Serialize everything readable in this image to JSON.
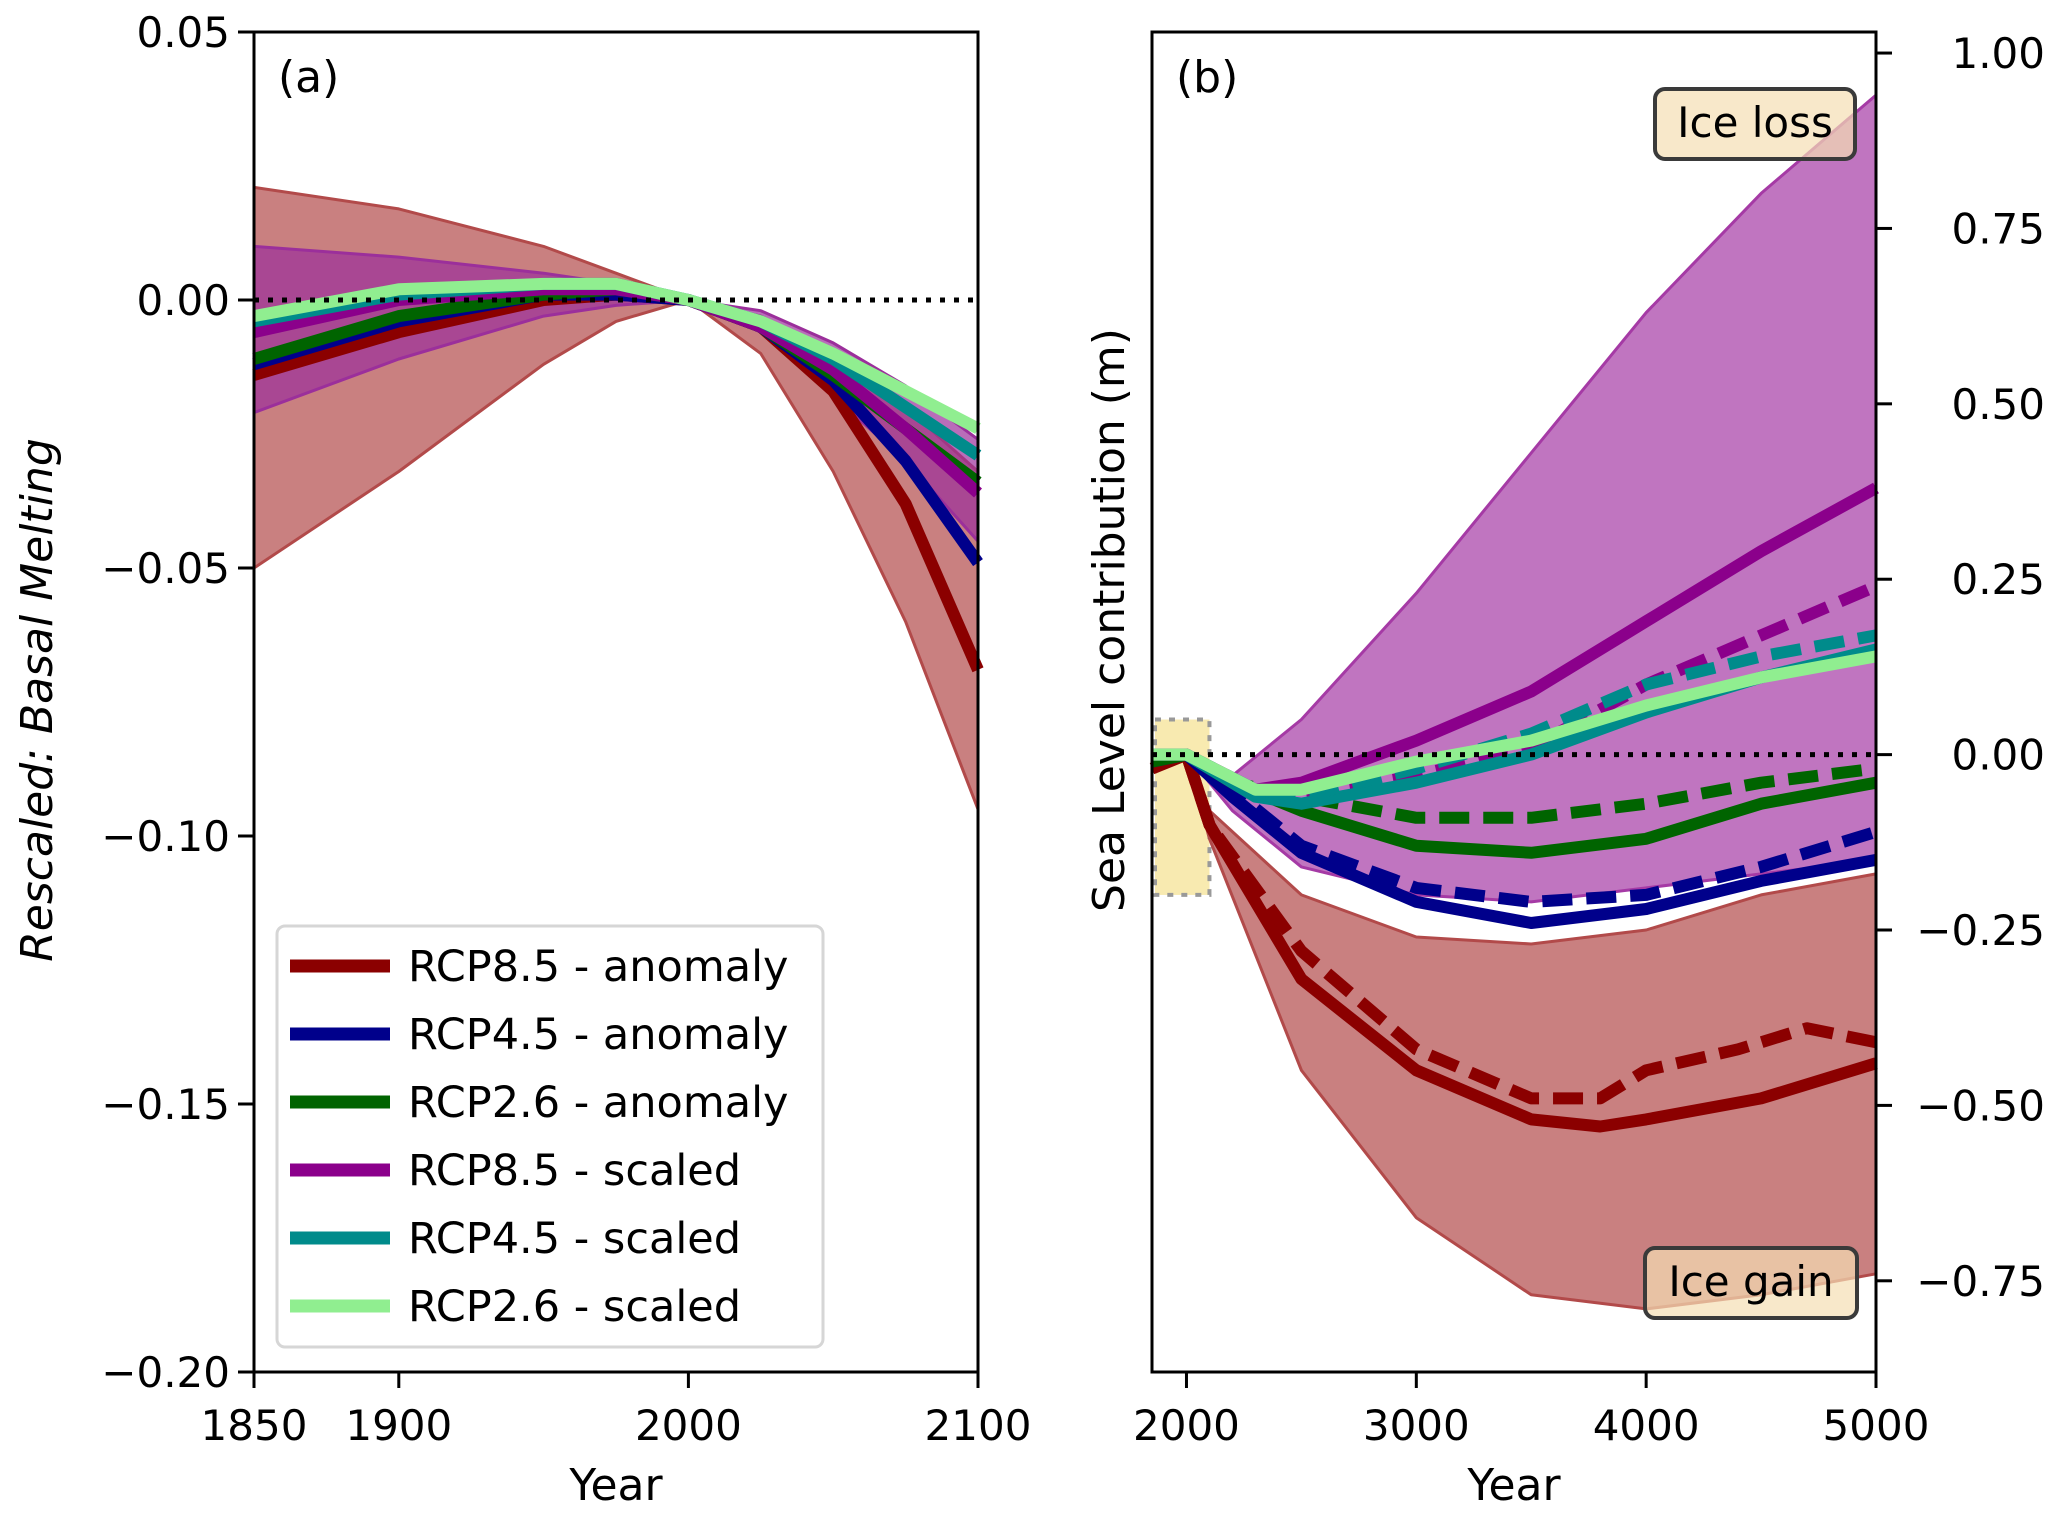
{
  "chart_data": [
    {
      "type": "line",
      "panel_label": "(a)",
      "xlabel": "Year",
      "ylabel": "Rescaled: Basal Melting",
      "ylabel_color": "#1a1a6e",
      "xlim": [
        1850,
        2100
      ],
      "ylim": [
        -0.2,
        0.05
      ],
      "xticks": [
        1850,
        1900,
        2000,
        2100
      ],
      "xtick_labels": [
        "1850",
        "1900",
        "2000",
        "2100"
      ],
      "yticks": [
        0.05,
        0.0,
        -0.05,
        -0.1,
        -0.15,
        -0.2
      ],
      "ytick_labels": [
        "0.05",
        "0.00",
        "−0.05",
        "−0.10",
        "−0.15",
        "−0.20"
      ],
      "reference_line": {
        "y": 0,
        "style": "dotted",
        "color": "#000000"
      },
      "legend_position": "lower-left",
      "bands": [
        {
          "name": "RCP8.5 anomaly range",
          "color": "#b24a4a",
          "x": [
            1850,
            1900,
            1950,
            1975,
            2000,
            2025,
            2050,
            2075,
            2100
          ],
          "upper": [
            0.021,
            0.017,
            0.01,
            0.005,
            0.0,
            -0.003,
            -0.01,
            -0.02,
            -0.032
          ],
          "lower": [
            -0.05,
            -0.032,
            -0.012,
            -0.004,
            0.0,
            -0.01,
            -0.032,
            -0.06,
            -0.095
          ]
        },
        {
          "name": "RCP8.5 scaled range",
          "color": "#9b2f9b",
          "x": [
            1850,
            1900,
            1950,
            1975,
            2000,
            2025,
            2050,
            2075,
            2100
          ],
          "upper": [
            0.01,
            0.008,
            0.005,
            0.003,
            0.0,
            -0.002,
            -0.008,
            -0.016,
            -0.026
          ],
          "lower": [
            -0.021,
            -0.011,
            -0.003,
            -0.001,
            0.0,
            -0.006,
            -0.018,
            -0.03,
            -0.045
          ]
        }
      ],
      "series": [
        {
          "name": "RCP8.5 - anomaly",
          "color": "#8b0000",
          "x": [
            1850,
            1900,
            1950,
            1975,
            2000,
            2025,
            2050,
            2075,
            2100
          ],
          "values": [
            -0.014,
            -0.006,
            0.0,
            0.001,
            0.0,
            -0.005,
            -0.017,
            -0.038,
            -0.069
          ]
        },
        {
          "name": "RCP4.5 - anomaly",
          "color": "#00008b",
          "x": [
            1850,
            1900,
            1950,
            1975,
            2000,
            2025,
            2050,
            2075,
            2100
          ],
          "values": [
            -0.012,
            -0.004,
            0.001,
            0.001,
            0.0,
            -0.005,
            -0.015,
            -0.03,
            -0.049
          ]
        },
        {
          "name": "RCP2.6 - anomaly",
          "color": "#006400",
          "x": [
            1850,
            1900,
            1950,
            1975,
            2000,
            2025,
            2050,
            2075,
            2100
          ],
          "values": [
            -0.011,
            -0.003,
            0.001,
            0.002,
            0.0,
            -0.005,
            -0.014,
            -0.024,
            -0.034
          ]
        },
        {
          "name": "RCP8.5 - scaled",
          "color": "#8b008b",
          "x": [
            1850,
            1900,
            1950,
            1975,
            2000,
            2025,
            2050,
            2075,
            2100
          ],
          "values": [
            -0.006,
            0.0,
            0.002,
            0.002,
            0.0,
            -0.005,
            -0.013,
            -0.024,
            -0.036
          ]
        },
        {
          "name": "RCP4.5 - scaled",
          "color": "#008b8b",
          "x": [
            1850,
            1900,
            1950,
            1975,
            2000,
            2025,
            2050,
            2075,
            2100
          ],
          "values": [
            -0.004,
            0.001,
            0.003,
            0.003,
            0.0,
            -0.004,
            -0.011,
            -0.02,
            -0.029
          ]
        },
        {
          "name": "RCP2.6 - scaled",
          "color": "#90ee90",
          "x": [
            1850,
            1900,
            1950,
            1975,
            2000,
            2025,
            2050,
            2075,
            2100
          ],
          "values": [
            -0.003,
            0.002,
            0.003,
            0.003,
            0.0,
            -0.004,
            -0.01,
            -0.017,
            -0.024
          ]
        }
      ]
    },
    {
      "type": "line",
      "panel_label": "(b)",
      "xlabel": "Year",
      "ylabel": "Sea Level contribution (m)",
      "xlim": [
        1850,
        5000
      ],
      "ylim": [
        -0.88,
        1.03
      ],
      "yaxis_side": "right",
      "xticks": [
        2000,
        3000,
        4000,
        5000
      ],
      "xtick_labels": [
        "2000",
        "3000",
        "4000",
        "5000"
      ],
      "yticks": [
        1.0,
        0.75,
        0.5,
        0.25,
        0.0,
        -0.25,
        -0.5,
        -0.75
      ],
      "ytick_labels": [
        "1.00",
        "0.75",
        "0.50",
        "0.25",
        "0.00",
        "−0.25",
        "−0.50",
        "−0.75"
      ],
      "reference_line": {
        "y": 0,
        "style": "dotted",
        "color": "#000000"
      },
      "highlight_box": {
        "x_range": [
          1850,
          2100
        ],
        "y_range": [
          -0.2,
          0.05
        ],
        "color": "#f8eab0"
      },
      "annotations": [
        {
          "text": "Ice loss",
          "position": "top-right"
        },
        {
          "text": "Ice gain",
          "position": "bottom-right"
        }
      ],
      "bands": [
        {
          "name": "RCP8.5 scaled range",
          "color": "#a53aa5",
          "x": [
            2000,
            2200,
            2500,
            3000,
            3500,
            4000,
            4500,
            5000
          ],
          "upper": [
            0.0,
            -0.03,
            0.05,
            0.23,
            0.43,
            0.63,
            0.8,
            0.94
          ],
          "lower": [
            0.0,
            -0.08,
            -0.16,
            -0.2,
            -0.21,
            -0.19,
            -0.17,
            -0.15
          ]
        },
        {
          "name": "RCP8.5 anomaly range",
          "color": "#b24a4a",
          "x": [
            2000,
            2100,
            2500,
            3000,
            3500,
            4000,
            4500,
            5000
          ],
          "upper": [
            0.0,
            -0.08,
            -0.2,
            -0.26,
            -0.27,
            -0.25,
            -0.2,
            -0.17
          ],
          "lower": [
            0.0,
            -0.12,
            -0.45,
            -0.66,
            -0.77,
            -0.79,
            -0.77,
            -0.74
          ]
        }
      ],
      "series": [
        {
          "name": "RCP8.5 - anomaly",
          "style": "solid",
          "color": "#8b0000",
          "x": [
            1850,
            2000,
            2100,
            2500,
            3000,
            3500,
            3800,
            4000,
            4500,
            5000
          ],
          "values": [
            -0.02,
            0.0,
            -0.1,
            -0.32,
            -0.45,
            -0.52,
            -0.53,
            -0.52,
            -0.49,
            -0.44
          ]
        },
        {
          "name": "RCP8.5 - anomaly (alt)",
          "style": "dashed",
          "color": "#8b0000",
          "x": [
            2000,
            2100,
            2500,
            3000,
            3500,
            3800,
            4000,
            4400,
            4700,
            5000
          ],
          "values": [
            0.0,
            -0.1,
            -0.28,
            -0.42,
            -0.49,
            -0.49,
            -0.45,
            -0.42,
            -0.39,
            -0.41
          ]
        },
        {
          "name": "RCP4.5 - anomaly",
          "style": "solid",
          "color": "#00008b",
          "x": [
            1850,
            2000,
            2200,
            2500,
            3000,
            3500,
            4000,
            4500,
            5000
          ],
          "values": [
            -0.01,
            0.0,
            -0.06,
            -0.14,
            -0.21,
            -0.24,
            -0.22,
            -0.18,
            -0.15
          ]
        },
        {
          "name": "RCP4.5 - anomaly (alt)",
          "style": "dashed",
          "color": "#00008b",
          "x": [
            2000,
            2200,
            2500,
            3000,
            3500,
            4000,
            4500,
            5000
          ],
          "values": [
            0.0,
            -0.05,
            -0.13,
            -0.19,
            -0.21,
            -0.2,
            -0.16,
            -0.11
          ]
        },
        {
          "name": "RCP2.6 - anomaly",
          "style": "solid",
          "color": "#006400",
          "x": [
            1850,
            2000,
            2200,
            2500,
            3000,
            3500,
            4000,
            4500,
            5000
          ],
          "values": [
            -0.01,
            0.0,
            -0.04,
            -0.08,
            -0.13,
            -0.14,
            -0.12,
            -0.07,
            -0.04
          ]
        },
        {
          "name": "RCP2.6 - anomaly (alt)",
          "style": "dashed",
          "color": "#006400",
          "x": [
            2000,
            2200,
            2500,
            3000,
            3500,
            4000,
            4500,
            5000
          ],
          "values": [
            0.0,
            -0.04,
            -0.06,
            -0.09,
            -0.09,
            -0.07,
            -0.04,
            -0.02
          ]
        },
        {
          "name": "RCP8.5 - scaled",
          "style": "solid",
          "color": "#8b008b",
          "x": [
            1850,
            2000,
            2300,
            2500,
            3000,
            3500,
            4000,
            4500,
            5000
          ],
          "values": [
            0.0,
            0.0,
            -0.05,
            -0.04,
            0.02,
            0.09,
            0.19,
            0.29,
            0.38
          ]
        },
        {
          "name": "RCP8.5 - scaled (alt)",
          "style": "dashed",
          "color": "#8b008b",
          "x": [
            2000,
            2300,
            2500,
            3000,
            3500,
            4000,
            4500,
            5000
          ],
          "values": [
            0.0,
            -0.06,
            -0.06,
            -0.03,
            0.01,
            0.1,
            0.17,
            0.24
          ]
        },
        {
          "name": "RCP4.5 - scaled",
          "style": "solid",
          "color": "#008b8b",
          "x": [
            1850,
            2000,
            2300,
            2500,
            3000,
            3500,
            4000,
            4500,
            5000
          ],
          "values": [
            0.0,
            0.0,
            -0.06,
            -0.07,
            -0.04,
            0.0,
            0.06,
            0.11,
            0.15
          ]
        },
        {
          "name": "RCP4.5 - scaled (alt)",
          "style": "dashed",
          "color": "#008b8b",
          "x": [
            2000,
            2300,
            2500,
            3000,
            3500,
            4000,
            4500,
            5000
          ],
          "values": [
            0.0,
            -0.05,
            -0.06,
            -0.02,
            0.03,
            0.1,
            0.14,
            0.17
          ]
        },
        {
          "name": "RCP2.6 - scaled",
          "style": "solid",
          "color": "#90ee90",
          "x": [
            1850,
            2000,
            2300,
            2500,
            3000,
            3500,
            4000,
            4500,
            5000
          ],
          "values": [
            0.0,
            0.0,
            -0.05,
            -0.05,
            -0.01,
            0.02,
            0.07,
            0.11,
            0.14
          ]
        }
      ]
    }
  ],
  "legend": {
    "items": [
      {
        "label": "RCP8.5 - anomaly",
        "color": "#8b0000"
      },
      {
        "label": "RCP4.5 - anomaly",
        "color": "#00008b"
      },
      {
        "label": "RCP2.6 - anomaly",
        "color": "#006400"
      },
      {
        "label": "RCP8.5 - scaled",
        "color": "#8b008b"
      },
      {
        "label": "RCP4.5 - scaled",
        "color": "#008b8b"
      },
      {
        "label": "RCP2.6 - scaled",
        "color": "#90ee90"
      }
    ]
  },
  "annotation_box_color": "#f5deb3"
}
